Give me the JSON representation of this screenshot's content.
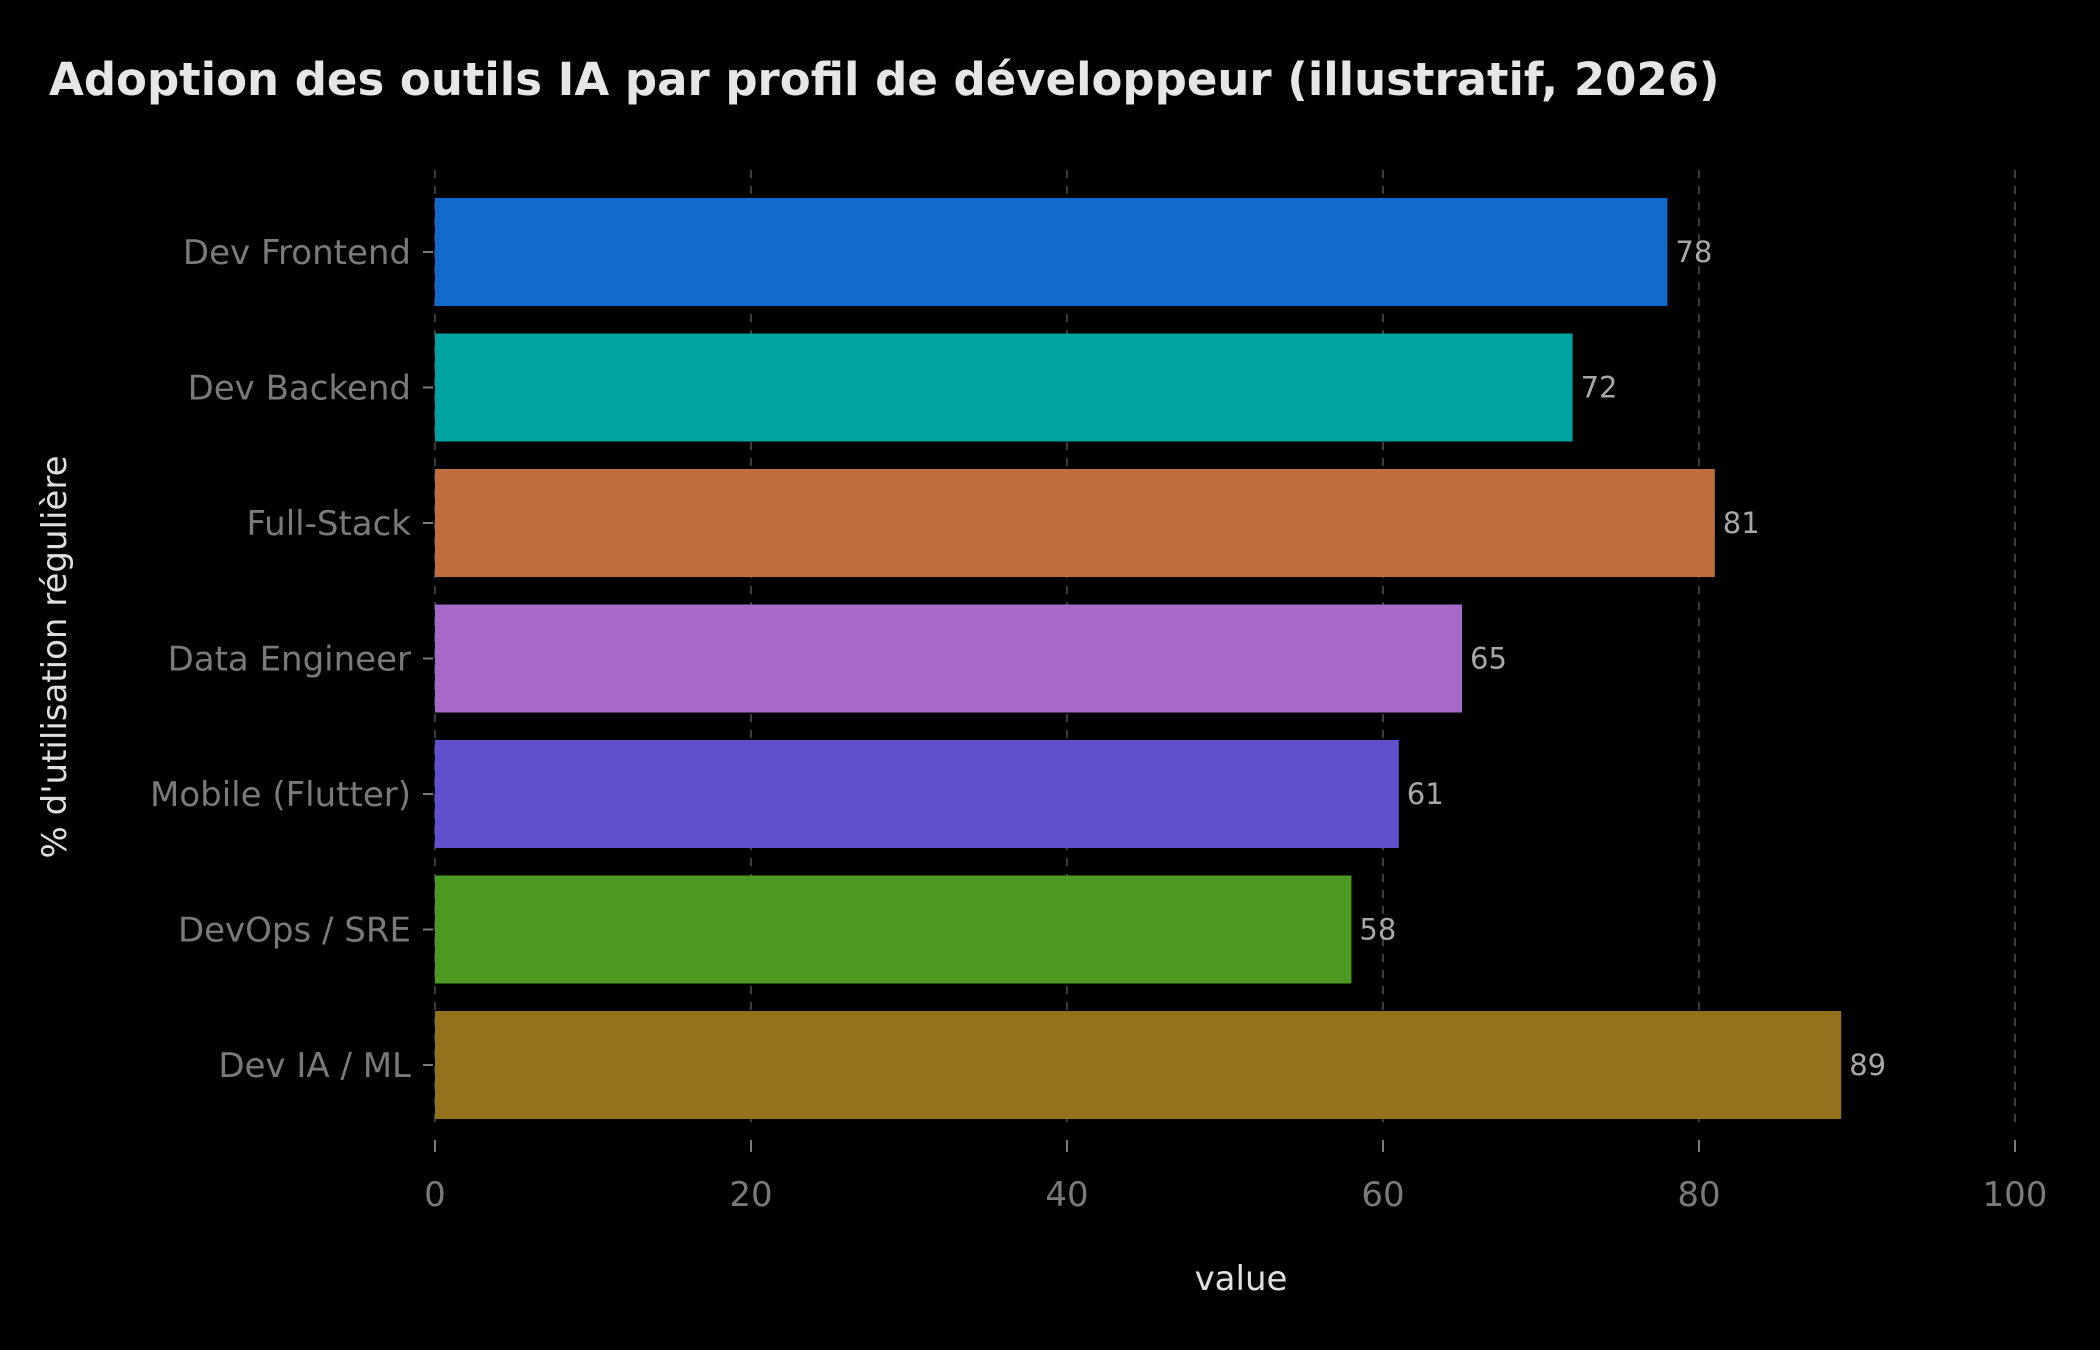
{
  "chart_data": {
    "type": "bar",
    "orientation": "horizontal",
    "title": "Adoption des outils IA par profil de développeur (illustratif, 2026)",
    "xlabel": "value",
    "ylabel": "% d'utilisation régulière",
    "xlim": [
      0,
      100
    ],
    "x_ticks": [
      0,
      20,
      40,
      60,
      80,
      100
    ],
    "grid": "vertical dashed",
    "legend": "none",
    "background": "#000000",
    "categories": [
      "Dev Frontend",
      "Dev Backend",
      "Full-Stack",
      "Data Engineer",
      "Mobile (Flutter)",
      "DevOps / SRE",
      "Dev IA / ML"
    ],
    "values": [
      78,
      72,
      81,
      65,
      61,
      58,
      89
    ],
    "colors": [
      "#116ace",
      "#00a2a2",
      "#c06e3e",
      "#a868c8",
      "#6050cc",
      "#4c9a22",
      "#94721c"
    ],
    "data_labels": [
      "78",
      "72",
      "81",
      "65",
      "61",
      "58",
      "89"
    ]
  }
}
